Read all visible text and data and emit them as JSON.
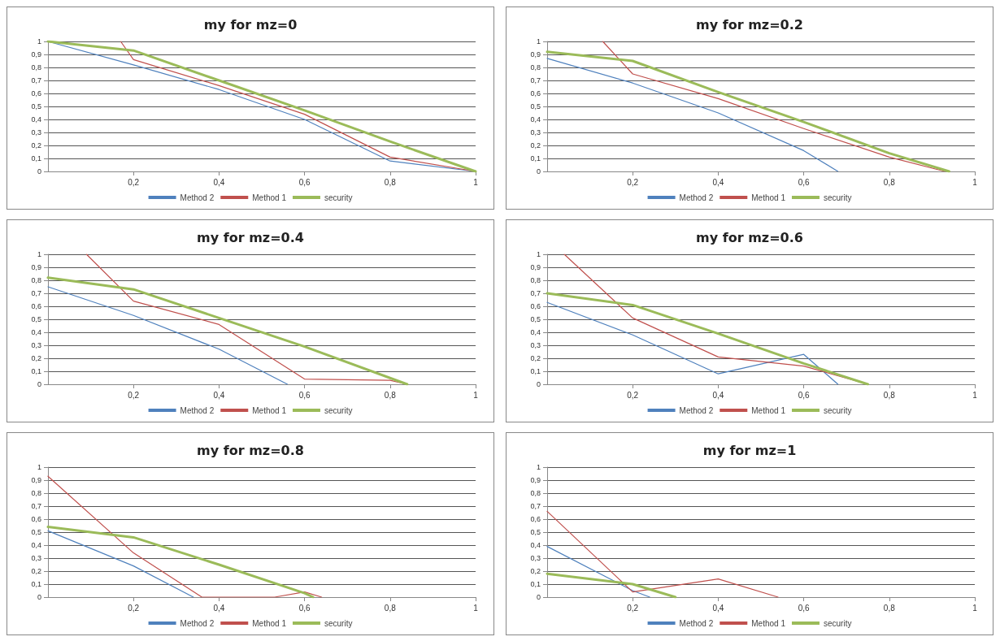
{
  "chart_data": [
    {
      "type": "line",
      "title": "my for mz=0",
      "xlim": [
        0,
        1
      ],
      "ylim": [
        0,
        1
      ],
      "xticks": [
        {
          "value": 0.2,
          "label": "0,2"
        },
        {
          "value": 0.4,
          "label": "0,4"
        },
        {
          "value": 0.6,
          "label": "0,6"
        },
        {
          "value": 0.8,
          "label": "0,8"
        },
        {
          "value": 1,
          "label": "1"
        }
      ],
      "yticks": [
        {
          "value": 0,
          "label": "0"
        },
        {
          "value": 0.1,
          "label": "0,1"
        },
        {
          "value": 0.2,
          "label": "0,2"
        },
        {
          "value": 0.3,
          "label": "0,3"
        },
        {
          "value": 0.4,
          "label": "0,4"
        },
        {
          "value": 0.5,
          "label": "0,5"
        },
        {
          "value": 0.6,
          "label": "0,6"
        },
        {
          "value": 0.7,
          "label": "0,7"
        },
        {
          "value": 0.8,
          "label": "0,8"
        },
        {
          "value": 0.9,
          "label": "0,9"
        },
        {
          "value": 1,
          "label": "1"
        }
      ],
      "grid": "y",
      "legend": "bottom",
      "marker": "none",
      "line_style": "solid",
      "series": [
        {
          "name": "Method 2",
          "color": "#4f81bd",
          "x": [
            0,
            0.2,
            0.4,
            0.6,
            0.8,
            1
          ],
          "values": [
            1,
            0.82,
            0.63,
            0.4,
            0.08,
            0
          ]
        },
        {
          "name": "Method 1",
          "color": "#c0504d",
          "x": [
            0.17,
            0.2,
            0.4,
            0.6,
            0.8,
            1
          ],
          "values": [
            1,
            0.86,
            0.66,
            0.44,
            0.11,
            0
          ]
        },
        {
          "name": "security",
          "color": "#9bbb59",
          "x": [
            0,
            0.2,
            0.4,
            0.6,
            0.8,
            1
          ],
          "values": [
            1,
            0.93,
            0.7,
            0.47,
            0.23,
            0
          ]
        }
      ]
    },
    {
      "type": "line",
      "title": "my for mz=0.2",
      "xlim": [
        0,
        1
      ],
      "ylim": [
        0,
        1
      ],
      "xticks": [
        {
          "value": 0.2,
          "label": "0,2"
        },
        {
          "value": 0.4,
          "label": "0,4"
        },
        {
          "value": 0.6,
          "label": "0,6"
        },
        {
          "value": 0.8,
          "label": "0,8"
        },
        {
          "value": 1,
          "label": "1"
        }
      ],
      "yticks": [
        {
          "value": 0,
          "label": "0"
        },
        {
          "value": 0.1,
          "label": "0,1"
        },
        {
          "value": 0.2,
          "label": "0,2"
        },
        {
          "value": 0.3,
          "label": "0,3"
        },
        {
          "value": 0.4,
          "label": "0,4"
        },
        {
          "value": 0.5,
          "label": "0,5"
        },
        {
          "value": 0.6,
          "label": "0,6"
        },
        {
          "value": 0.7,
          "label": "0,7"
        },
        {
          "value": 0.8,
          "label": "0,8"
        },
        {
          "value": 0.9,
          "label": "0,9"
        },
        {
          "value": 1,
          "label": "1"
        }
      ],
      "grid": "y",
      "legend": "bottom",
      "marker": "none",
      "line_style": "solid",
      "series": [
        {
          "name": "Method 2",
          "color": "#4f81bd",
          "x": [
            0,
            0.2,
            0.4,
            0.6,
            0.68
          ],
          "values": [
            0.87,
            0.68,
            0.45,
            0.16,
            0
          ]
        },
        {
          "name": "Method 1",
          "color": "#c0504d",
          "x": [
            0.13,
            0.2,
            0.4,
            0.6,
            0.8,
            0.93
          ],
          "values": [
            1,
            0.75,
            0.56,
            0.33,
            0.11,
            0
          ]
        },
        {
          "name": "security",
          "color": "#9bbb59",
          "x": [
            0,
            0.2,
            0.4,
            0.6,
            0.8,
            0.94
          ],
          "values": [
            0.92,
            0.85,
            0.61,
            0.38,
            0.14,
            0
          ]
        }
      ]
    },
    {
      "type": "line",
      "title": "my for mz=0.4",
      "xlim": [
        0,
        1
      ],
      "ylim": [
        0,
        1
      ],
      "xticks": [
        {
          "value": 0.2,
          "label": "0,2"
        },
        {
          "value": 0.4,
          "label": "0,4"
        },
        {
          "value": 0.6,
          "label": "0,6"
        },
        {
          "value": 0.8,
          "label": "0,8"
        },
        {
          "value": 1,
          "label": "1"
        }
      ],
      "yticks": [
        {
          "value": 0,
          "label": "0"
        },
        {
          "value": 0.1,
          "label": "0,1"
        },
        {
          "value": 0.2,
          "label": "0,2"
        },
        {
          "value": 0.3,
          "label": "0,3"
        },
        {
          "value": 0.4,
          "label": "0,4"
        },
        {
          "value": 0.5,
          "label": "0,5"
        },
        {
          "value": 0.6,
          "label": "0,6"
        },
        {
          "value": 0.7,
          "label": "0,7"
        },
        {
          "value": 0.8,
          "label": "0,8"
        },
        {
          "value": 0.9,
          "label": "0,9"
        },
        {
          "value": 1,
          "label": "1"
        }
      ],
      "grid": "y",
      "legend": "bottom",
      "marker": "none",
      "line_style": "solid",
      "series": [
        {
          "name": "Method 2",
          "color": "#4f81bd",
          "x": [
            0,
            0.2,
            0.4,
            0.56
          ],
          "values": [
            0.75,
            0.53,
            0.27,
            0
          ]
        },
        {
          "name": "Method 1",
          "color": "#c0504d",
          "x": [
            0.09,
            0.2,
            0.4,
            0.6,
            0.8,
            0.84
          ],
          "values": [
            1,
            0.64,
            0.46,
            0.04,
            0.03,
            0
          ]
        },
        {
          "name": "security",
          "color": "#9bbb59",
          "x": [
            0,
            0.2,
            0.4,
            0.6,
            0.84
          ],
          "values": [
            0.82,
            0.73,
            0.51,
            0.29,
            0
          ]
        }
      ]
    },
    {
      "type": "line",
      "title": "my for mz=0.6",
      "xlim": [
        0,
        1
      ],
      "ylim": [
        0,
        1
      ],
      "xticks": [
        {
          "value": 0.2,
          "label": "0,2"
        },
        {
          "value": 0.4,
          "label": "0,4"
        },
        {
          "value": 0.6,
          "label": "0,6"
        },
        {
          "value": 0.8,
          "label": "0,8"
        },
        {
          "value": 1,
          "label": "1"
        }
      ],
      "yticks": [
        {
          "value": 0,
          "label": "0"
        },
        {
          "value": 0.1,
          "label": "0,1"
        },
        {
          "value": 0.2,
          "label": "0,2"
        },
        {
          "value": 0.3,
          "label": "0,3"
        },
        {
          "value": 0.4,
          "label": "0,4"
        },
        {
          "value": 0.5,
          "label": "0,5"
        },
        {
          "value": 0.6,
          "label": "0,6"
        },
        {
          "value": 0.7,
          "label": "0,7"
        },
        {
          "value": 0.8,
          "label": "0,8"
        },
        {
          "value": 0.9,
          "label": "0,9"
        },
        {
          "value": 1,
          "label": "1"
        }
      ],
      "grid": "y",
      "legend": "bottom",
      "marker": "none",
      "line_style": "solid",
      "series": [
        {
          "name": "Method 2",
          "color": "#4f81bd",
          "x": [
            0,
            0.2,
            0.4,
            0.6,
            0.68
          ],
          "values": [
            0.63,
            0.38,
            0.08,
            0.23,
            0
          ]
        },
        {
          "name": "Method 1",
          "color": "#c0504d",
          "x": [
            0.04,
            0.2,
            0.4,
            0.6,
            0.75
          ],
          "values": [
            1,
            0.51,
            0.21,
            0.14,
            0
          ]
        },
        {
          "name": "security",
          "color": "#9bbb59",
          "x": [
            0,
            0.2,
            0.4,
            0.6,
            0.75
          ],
          "values": [
            0.7,
            0.61,
            0.39,
            0.16,
            0
          ]
        }
      ]
    },
    {
      "type": "line",
      "title": "my for mz=0.8",
      "xlim": [
        0,
        1
      ],
      "ylim": [
        0,
        1
      ],
      "xticks": [
        {
          "value": 0.2,
          "label": "0,2"
        },
        {
          "value": 0.4,
          "label": "0,4"
        },
        {
          "value": 0.6,
          "label": "0,6"
        },
        {
          "value": 0.8,
          "label": "0,8"
        },
        {
          "value": 1,
          "label": "1"
        }
      ],
      "yticks": [
        {
          "value": 0,
          "label": "0"
        },
        {
          "value": 0.1,
          "label": "0,1"
        },
        {
          "value": 0.2,
          "label": "0,2"
        },
        {
          "value": 0.3,
          "label": "0,3"
        },
        {
          "value": 0.4,
          "label": "0,4"
        },
        {
          "value": 0.5,
          "label": "0,5"
        },
        {
          "value": 0.6,
          "label": "0,6"
        },
        {
          "value": 0.7,
          "label": "0,7"
        },
        {
          "value": 0.8,
          "label": "0,8"
        },
        {
          "value": 0.9,
          "label": "0,9"
        },
        {
          "value": 1,
          "label": "1"
        }
      ],
      "grid": "y",
      "legend": "bottom",
      "marker": "none",
      "line_style": "solid",
      "series": [
        {
          "name": "Method 2",
          "color": "#4f81bd",
          "x": [
            0,
            0.2,
            0.34
          ],
          "values": [
            0.51,
            0.24,
            0
          ]
        },
        {
          "name": "Method 1",
          "color": "#c0504d",
          "x": [
            0,
            0.2,
            0.36,
            0.53,
            0.6,
            0.64
          ],
          "values": [
            0.93,
            0.34,
            0,
            0,
            0.04,
            0
          ]
        },
        {
          "name": "security",
          "color": "#9bbb59",
          "x": [
            0,
            0.2,
            0.4,
            0.6,
            0.62
          ],
          "values": [
            0.54,
            0.46,
            0.25,
            0.03,
            0
          ]
        }
      ]
    },
    {
      "type": "line",
      "title": "my for mz=1",
      "xlim": [
        0,
        1
      ],
      "ylim": [
        0,
        1
      ],
      "xticks": [
        {
          "value": 0.2,
          "label": "0,2"
        },
        {
          "value": 0.4,
          "label": "0,4"
        },
        {
          "value": 0.6,
          "label": "0,6"
        },
        {
          "value": 0.8,
          "label": "0,8"
        },
        {
          "value": 1,
          "label": "1"
        }
      ],
      "yticks": [
        {
          "value": 0,
          "label": "0"
        },
        {
          "value": 0.1,
          "label": "0,1"
        },
        {
          "value": 0.2,
          "label": "0,2"
        },
        {
          "value": 0.3,
          "label": "0,3"
        },
        {
          "value": 0.4,
          "label": "0,4"
        },
        {
          "value": 0.5,
          "label": "0,5"
        },
        {
          "value": 0.6,
          "label": "0,6"
        },
        {
          "value": 0.7,
          "label": "0,7"
        },
        {
          "value": 0.8,
          "label": "0,8"
        },
        {
          "value": 0.9,
          "label": "0,9"
        },
        {
          "value": 1,
          "label": "1"
        }
      ],
      "grid": "y",
      "legend": "bottom",
      "marker": "none",
      "line_style": "solid",
      "series": [
        {
          "name": "Method 2",
          "color": "#4f81bd",
          "x": [
            0,
            0.2,
            0.24
          ],
          "values": [
            0.39,
            0.05,
            0
          ]
        },
        {
          "name": "Method 1",
          "color": "#c0504d",
          "x": [
            0,
            0.2,
            0.4,
            0.54
          ],
          "values": [
            0.66,
            0.04,
            0.14,
            0
          ]
        },
        {
          "name": "security",
          "color": "#9bbb59",
          "x": [
            0,
            0.2,
            0.3
          ],
          "values": [
            0.18,
            0.1,
            0
          ]
        }
      ]
    }
  ]
}
